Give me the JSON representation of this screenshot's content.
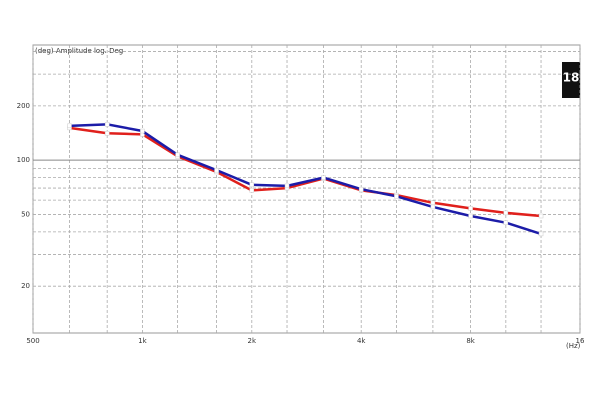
{
  "chart_data": {
    "type": "line",
    "title": "(deg)  Amplitude log. Deg",
    "x_label": "(Hz)",
    "logo": "18",
    "x": [
      630,
      800,
      1000,
      1250,
      1600,
      2000,
      2500,
      3150,
      4000,
      5000,
      6300,
      8000,
      10000,
      12500
    ],
    "series": [
      {
        "name": "Red",
        "color": "#e0201c",
        "values": [
          151,
          141,
          139,
          105,
          86,
          68,
          70,
          79,
          68,
          64,
          58,
          54,
          51,
          49
        ]
      },
      {
        "name": "Blue",
        "color": "#1c1ca8",
        "values": [
          155,
          158,
          145,
          107,
          88,
          73,
          72,
          80,
          69,
          63,
          55,
          49,
          45,
          39
        ]
      }
    ],
    "xlim": [
      500,
      16000
    ],
    "xticks": [
      500,
      {
        "value": 1000,
        "label": "1k"
      },
      {
        "value": 2000,
        "label": "2k"
      },
      {
        "value": 4000,
        "label": "4k"
      },
      {
        "value": 8000,
        "label": "8k"
      },
      {
        "value": 16000,
        "label": "16"
      }
    ],
    "xminor": [
      630,
      800,
      1250,
      1600,
      2500,
      3150,
      5000,
      6300,
      10000,
      12500
    ],
    "ylim": [
      11,
      435
    ],
    "yticks": [
      20,
      50,
      100,
      200
    ],
    "yminor": [
      30,
      40,
      60,
      70,
      80,
      90,
      300,
      400
    ],
    "xlog": true,
    "ylog": true,
    "grid": true
  }
}
